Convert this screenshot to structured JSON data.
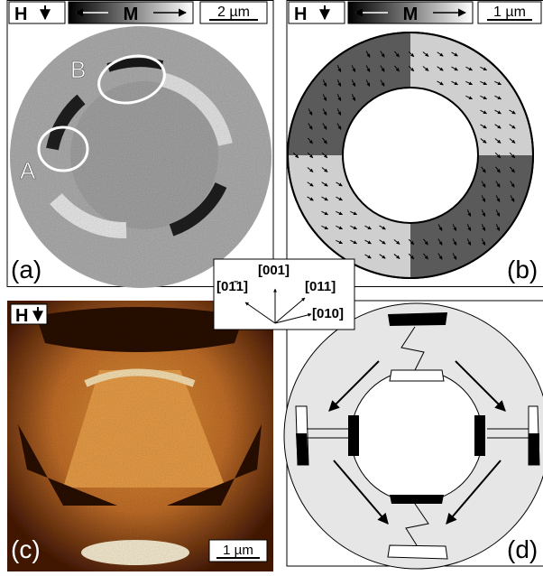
{
  "panels": [
    {
      "label": "(a)",
      "header": {
        "field": "H",
        "magnetization": "M",
        "scale_bar": "2 µm"
      },
      "annotations": [
        "A",
        "B"
      ]
    },
    {
      "label": "(b)",
      "header": {
        "field": "H",
        "magnetization": "M",
        "scale_bar": "1 µm"
      }
    },
    {
      "label": "(c)",
      "header": {
        "field": "H"
      },
      "scale_bar": "1 µm"
    },
    {
      "label": "(d)"
    }
  ],
  "directions": [
    "[01̄1]",
    "[001]",
    "[011]",
    "[010]"
  ]
}
